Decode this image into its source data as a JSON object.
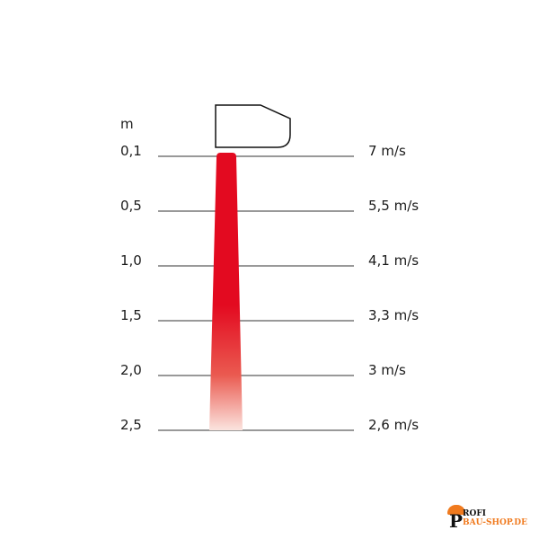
{
  "unit_label": "m",
  "rows": [
    {
      "distance": "0,1",
      "speed": "7 m/s"
    },
    {
      "distance": "0,5",
      "speed": "5,5 m/s"
    },
    {
      "distance": "1,0",
      "speed": "4,1 m/s"
    },
    {
      "distance": "1,5",
      "speed": "3,3 m/s"
    },
    {
      "distance": "2,0",
      "speed": "3 m/s"
    },
    {
      "distance": "2,5",
      "speed": "2,6 m/s"
    }
  ],
  "colors": {
    "air_stream": "#e30a20",
    "lines": "#333333",
    "logo_accent": "#f07a1e"
  },
  "logo": {
    "line1": "ROFI",
    "line2": "BAU-SHOP.DE",
    "initial": "P"
  }
}
